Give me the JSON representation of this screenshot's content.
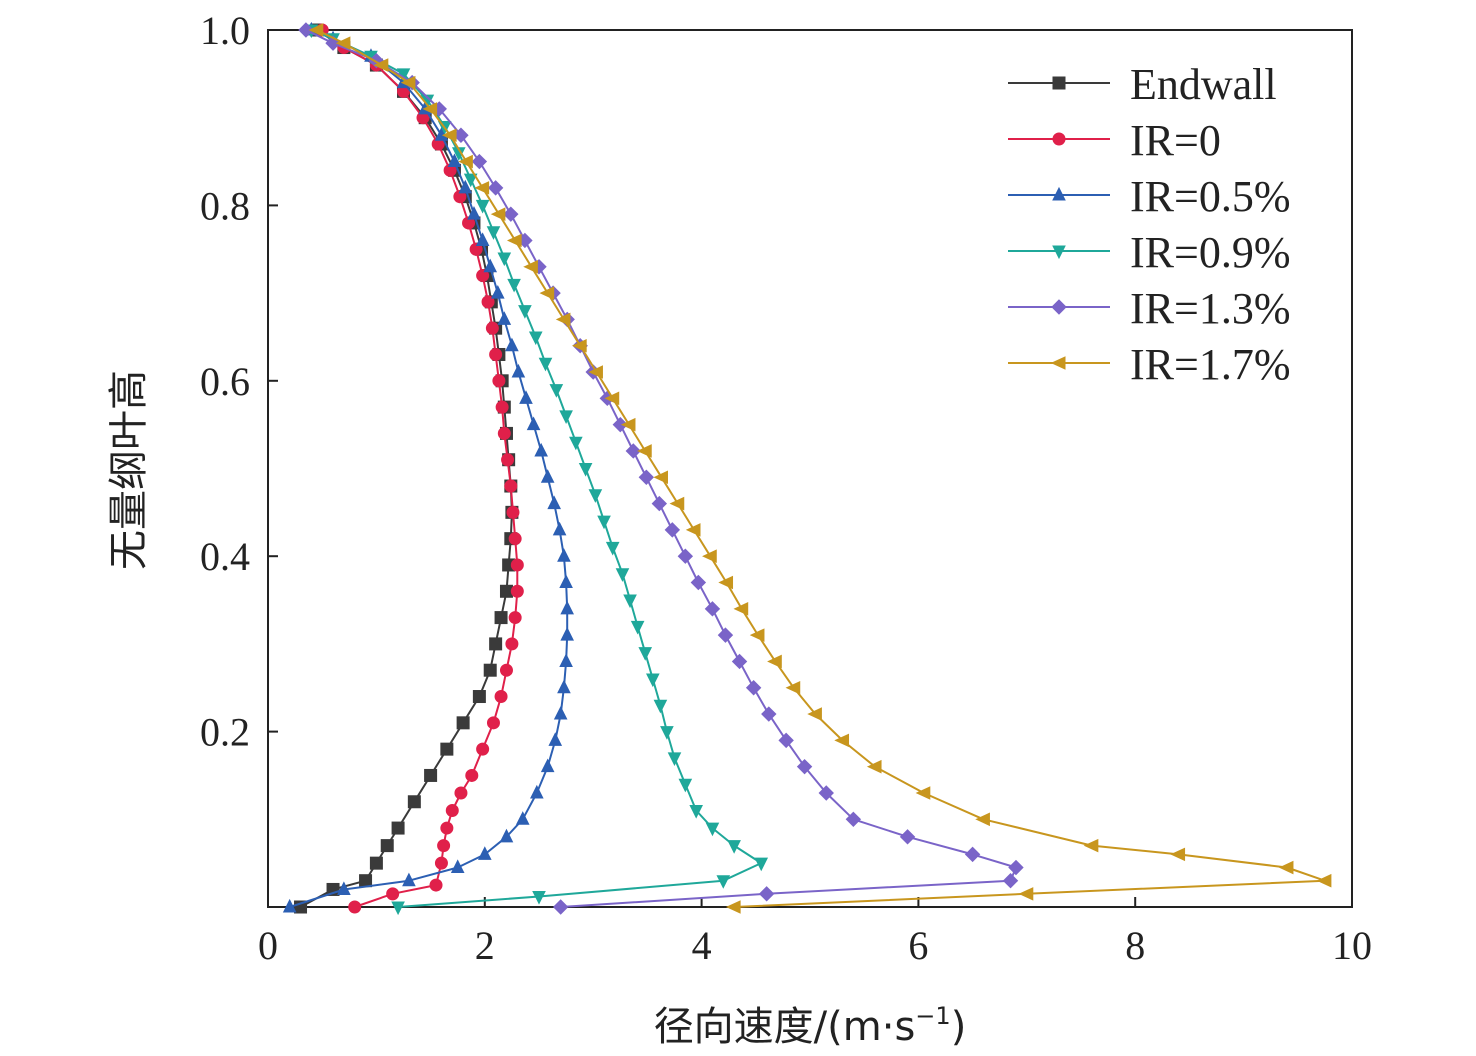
{
  "chart_data": {
    "type": "line",
    "title": "",
    "xlabel": "径向速度/(m·s",
    "xlabel_sup": "−1",
    "xlabel_close": ")",
    "ylabel": "无量纲叶高",
    "xlim": [
      0,
      10
    ],
    "ylim": [
      0,
      1.0
    ],
    "x_ticks": [
      0,
      2,
      4,
      6,
      8,
      10
    ],
    "x_tick_labels": [
      "0",
      "2",
      "4",
      "6",
      "8",
      "10"
    ],
    "y_ticks": [
      0.2,
      0.4,
      0.6,
      0.8,
      1.0
    ],
    "y_tick_labels": [
      "0.2",
      "0.4",
      "0.6",
      "0.8",
      "1.0"
    ],
    "grid": false,
    "legend_position": "top-right",
    "series": [
      {
        "name": "Endwall",
        "color": "#3a3a3a",
        "marker": "square",
        "points": [
          [
            0.3,
            0.0
          ],
          [
            0.6,
            0.02
          ],
          [
            0.9,
            0.03
          ],
          [
            1.0,
            0.05
          ],
          [
            1.1,
            0.07
          ],
          [
            1.2,
            0.09
          ],
          [
            1.35,
            0.12
          ],
          [
            1.5,
            0.15
          ],
          [
            1.65,
            0.18
          ],
          [
            1.8,
            0.21
          ],
          [
            1.95,
            0.24
          ],
          [
            2.05,
            0.27
          ],
          [
            2.1,
            0.3
          ],
          [
            2.15,
            0.33
          ],
          [
            2.2,
            0.36
          ],
          [
            2.22,
            0.39
          ],
          [
            2.24,
            0.42
          ],
          [
            2.25,
            0.45
          ],
          [
            2.24,
            0.48
          ],
          [
            2.22,
            0.51
          ],
          [
            2.2,
            0.54
          ],
          [
            2.18,
            0.57
          ],
          [
            2.16,
            0.6
          ],
          [
            2.13,
            0.63
          ],
          [
            2.1,
            0.66
          ],
          [
            2.06,
            0.69
          ],
          [
            2.02,
            0.72
          ],
          [
            1.97,
            0.75
          ],
          [
            1.9,
            0.78
          ],
          [
            1.82,
            0.81
          ],
          [
            1.72,
            0.84
          ],
          [
            1.6,
            0.87
          ],
          [
            1.45,
            0.9
          ],
          [
            1.25,
            0.93
          ],
          [
            1.0,
            0.96
          ],
          [
            0.7,
            0.98
          ],
          [
            0.45,
            1.0
          ]
        ]
      },
      {
        "name": "IR=0",
        "color": "#e0204a",
        "marker": "circle",
        "points": [
          [
            0.8,
            0.0
          ],
          [
            1.15,
            0.015
          ],
          [
            1.55,
            0.025
          ],
          [
            1.6,
            0.05
          ],
          [
            1.62,
            0.07
          ],
          [
            1.65,
            0.09
          ],
          [
            1.7,
            0.11
          ],
          [
            1.78,
            0.13
          ],
          [
            1.88,
            0.15
          ],
          [
            1.98,
            0.18
          ],
          [
            2.08,
            0.21
          ],
          [
            2.15,
            0.24
          ],
          [
            2.2,
            0.27
          ],
          [
            2.25,
            0.3
          ],
          [
            2.28,
            0.33
          ],
          [
            2.3,
            0.36
          ],
          [
            2.3,
            0.39
          ],
          [
            2.28,
            0.42
          ],
          [
            2.26,
            0.45
          ],
          [
            2.24,
            0.48
          ],
          [
            2.21,
            0.51
          ],
          [
            2.18,
            0.54
          ],
          [
            2.16,
            0.57
          ],
          [
            2.13,
            0.6
          ],
          [
            2.1,
            0.63
          ],
          [
            2.07,
            0.66
          ],
          [
            2.03,
            0.69
          ],
          [
            1.98,
            0.72
          ],
          [
            1.92,
            0.75
          ],
          [
            1.85,
            0.78
          ],
          [
            1.77,
            0.81
          ],
          [
            1.68,
            0.84
          ],
          [
            1.57,
            0.87
          ],
          [
            1.43,
            0.9
          ],
          [
            1.25,
            0.93
          ],
          [
            1.0,
            0.96
          ],
          [
            0.7,
            0.98
          ],
          [
            0.5,
            1.0
          ]
        ]
      },
      {
        "name": "IR=0.5%",
        "color": "#2c5fb3",
        "marker": "triangle-up",
        "points": [
          [
            0.2,
            0.0
          ],
          [
            0.7,
            0.02
          ],
          [
            1.3,
            0.03
          ],
          [
            1.75,
            0.045
          ],
          [
            2.0,
            0.06
          ],
          [
            2.2,
            0.08
          ],
          [
            2.35,
            0.1
          ],
          [
            2.48,
            0.13
          ],
          [
            2.58,
            0.16
          ],
          [
            2.65,
            0.19
          ],
          [
            2.7,
            0.22
          ],
          [
            2.73,
            0.25
          ],
          [
            2.75,
            0.28
          ],
          [
            2.76,
            0.31
          ],
          [
            2.76,
            0.34
          ],
          [
            2.75,
            0.37
          ],
          [
            2.73,
            0.4
          ],
          [
            2.69,
            0.43
          ],
          [
            2.64,
            0.46
          ],
          [
            2.58,
            0.49
          ],
          [
            2.52,
            0.52
          ],
          [
            2.45,
            0.55
          ],
          [
            2.38,
            0.58
          ],
          [
            2.31,
            0.61
          ],
          [
            2.25,
            0.64
          ],
          [
            2.18,
            0.67
          ],
          [
            2.12,
            0.7
          ],
          [
            2.05,
            0.73
          ],
          [
            1.98,
            0.76
          ],
          [
            1.9,
            0.79
          ],
          [
            1.82,
            0.82
          ],
          [
            1.72,
            0.85
          ],
          [
            1.6,
            0.88
          ],
          [
            1.45,
            0.91
          ],
          [
            1.25,
            0.94
          ],
          [
            0.95,
            0.97
          ],
          [
            0.6,
            0.99
          ],
          [
            0.4,
            1.0
          ]
        ]
      },
      {
        "name": "IR=0.9%",
        "color": "#1fa89a",
        "marker": "triangle-down",
        "points": [
          [
            1.2,
            0.0
          ],
          [
            2.5,
            0.012
          ],
          [
            4.2,
            0.03
          ],
          [
            4.55,
            0.05
          ],
          [
            4.3,
            0.07
          ],
          [
            4.1,
            0.09
          ],
          [
            3.95,
            0.11
          ],
          [
            3.85,
            0.14
          ],
          [
            3.75,
            0.17
          ],
          [
            3.68,
            0.2
          ],
          [
            3.62,
            0.23
          ],
          [
            3.55,
            0.26
          ],
          [
            3.48,
            0.29
          ],
          [
            3.41,
            0.32
          ],
          [
            3.34,
            0.35
          ],
          [
            3.27,
            0.38
          ],
          [
            3.18,
            0.41
          ],
          [
            3.1,
            0.44
          ],
          [
            3.02,
            0.47
          ],
          [
            2.93,
            0.5
          ],
          [
            2.84,
            0.53
          ],
          [
            2.75,
            0.56
          ],
          [
            2.66,
            0.59
          ],
          [
            2.56,
            0.62
          ],
          [
            2.47,
            0.65
          ],
          [
            2.37,
            0.68
          ],
          [
            2.27,
            0.71
          ],
          [
            2.18,
            0.74
          ],
          [
            2.08,
            0.77
          ],
          [
            1.98,
            0.8
          ],
          [
            1.87,
            0.83
          ],
          [
            1.76,
            0.86
          ],
          [
            1.63,
            0.89
          ],
          [
            1.47,
            0.92
          ],
          [
            1.25,
            0.95
          ],
          [
            0.95,
            0.97
          ],
          [
            0.6,
            0.99
          ],
          [
            0.4,
            1.0
          ]
        ]
      },
      {
        "name": "IR=1.3%",
        "color": "#7a64c8",
        "marker": "diamond",
        "points": [
          [
            2.7,
            0.0
          ],
          [
            4.6,
            0.015
          ],
          [
            6.85,
            0.03
          ],
          [
            6.9,
            0.045
          ],
          [
            6.5,
            0.06
          ],
          [
            5.9,
            0.08
          ],
          [
            5.4,
            0.1
          ],
          [
            5.15,
            0.13
          ],
          [
            4.95,
            0.16
          ],
          [
            4.78,
            0.19
          ],
          [
            4.62,
            0.22
          ],
          [
            4.48,
            0.25
          ],
          [
            4.35,
            0.28
          ],
          [
            4.22,
            0.31
          ],
          [
            4.1,
            0.34
          ],
          [
            3.97,
            0.37
          ],
          [
            3.85,
            0.4
          ],
          [
            3.73,
            0.43
          ],
          [
            3.61,
            0.46
          ],
          [
            3.49,
            0.49
          ],
          [
            3.37,
            0.52
          ],
          [
            3.25,
            0.55
          ],
          [
            3.13,
            0.58
          ],
          [
            3.0,
            0.61
          ],
          [
            2.88,
            0.64
          ],
          [
            2.76,
            0.67
          ],
          [
            2.63,
            0.7
          ],
          [
            2.5,
            0.73
          ],
          [
            2.37,
            0.76
          ],
          [
            2.24,
            0.79
          ],
          [
            2.1,
            0.82
          ],
          [
            1.95,
            0.85
          ],
          [
            1.78,
            0.88
          ],
          [
            1.58,
            0.91
          ],
          [
            1.33,
            0.94
          ],
          [
            1.0,
            0.965
          ],
          [
            0.6,
            0.985
          ],
          [
            0.35,
            1.0
          ]
        ]
      },
      {
        "name": "IR=1.7%",
        "color": "#c8961e",
        "marker": "triangle-left",
        "points": [
          [
            4.3,
            0.0
          ],
          [
            7.0,
            0.015
          ],
          [
            9.75,
            0.03
          ],
          [
            9.4,
            0.045
          ],
          [
            8.4,
            0.06
          ],
          [
            7.6,
            0.07
          ],
          [
            6.6,
            0.1
          ],
          [
            6.05,
            0.13
          ],
          [
            5.6,
            0.16
          ],
          [
            5.3,
            0.19
          ],
          [
            5.05,
            0.22
          ],
          [
            4.85,
            0.25
          ],
          [
            4.68,
            0.28
          ],
          [
            4.52,
            0.31
          ],
          [
            4.37,
            0.34
          ],
          [
            4.23,
            0.37
          ],
          [
            4.08,
            0.4
          ],
          [
            3.93,
            0.43
          ],
          [
            3.78,
            0.46
          ],
          [
            3.63,
            0.49
          ],
          [
            3.48,
            0.52
          ],
          [
            3.33,
            0.55
          ],
          [
            3.18,
            0.58
          ],
          [
            3.03,
            0.61
          ],
          [
            2.88,
            0.64
          ],
          [
            2.73,
            0.67
          ],
          [
            2.58,
            0.7
          ],
          [
            2.43,
            0.73
          ],
          [
            2.28,
            0.76
          ],
          [
            2.13,
            0.79
          ],
          [
            1.98,
            0.82
          ],
          [
            1.83,
            0.85
          ],
          [
            1.68,
            0.88
          ],
          [
            1.5,
            0.91
          ],
          [
            1.3,
            0.94
          ],
          [
            1.05,
            0.96
          ],
          [
            0.7,
            0.985
          ],
          [
            0.45,
            1.0
          ]
        ]
      }
    ]
  }
}
